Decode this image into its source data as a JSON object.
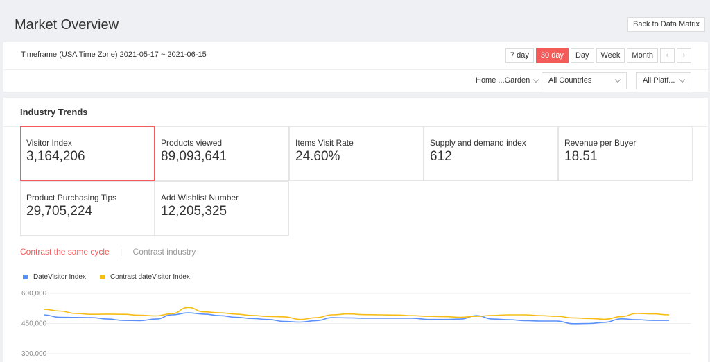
{
  "header": {
    "title": "Market Overview",
    "back_label": "Back to Data Matrix"
  },
  "filters": {
    "timeframe": "Timeframe (USA Time Zone) 2021-05-17 ~ 2021-06-15",
    "ranges": [
      "7 day",
      "30 day",
      "Day",
      "Week",
      "Month"
    ],
    "active_range": "30 day",
    "prev_glyph": "‹",
    "next_glyph": "›",
    "category": "Home ...Garden",
    "country": "All Countries",
    "platform": "All Platf..."
  },
  "trends": {
    "title": "Industry Trends",
    "metrics": [
      {
        "label": "Visitor Index",
        "value": "3,164,206"
      },
      {
        "label": "Products viewed",
        "value": "89,093,641"
      },
      {
        "label": "Items Visit Rate",
        "value": "24.60%"
      },
      {
        "label": "Supply and demand index",
        "value": "612"
      },
      {
        "label": "Revenue per Buyer",
        "value": "18.51"
      },
      {
        "label": "Product Purchasing Tips",
        "value": "29,705,224"
      },
      {
        "label": "Add Wishlist Number",
        "value": "12,205,325"
      }
    ],
    "selected_metric": "Visitor Index",
    "contrast_same_cycle": "Contrast the same cycle",
    "contrast_separator": "|",
    "contrast_industry": "Contrast industry"
  },
  "colors": {
    "accent": "#f45b5b",
    "series_blue": "#5b8ff9",
    "series_yellow": "#f6bd16"
  },
  "chart_data": {
    "type": "line",
    "ylim": [
      300000,
      600000
    ],
    "yticks": [
      "600,000",
      "450,000",
      "300,000"
    ],
    "ytick_values": [
      600000,
      450000,
      300000
    ],
    "series": [
      {
        "name": "DateVisitor Index",
        "color": "#5b8ff9",
        "values": [
          493000,
          481000,
          480000,
          479000,
          472000,
          465000,
          464000,
          472000,
          493000,
          503000,
          497000,
          489000,
          481000,
          475000,
          470000,
          460000,
          457000,
          464000,
          479000,
          478000,
          476000,
          476000,
          476000,
          476000,
          470000,
          470000,
          472000,
          489000,
          472000,
          469000,
          464000,
          462000,
          462000,
          449000,
          450000,
          456000,
          473000,
          469000,
          465000,
          465000
        ]
      },
      {
        "name": "Contrast dateVisitor Index",
        "color": "#f6bd16",
        "values": [
          521000,
          512000,
          500000,
          496000,
          497000,
          496000,
          491000,
          488000,
          499000,
          530000,
          508000,
          503000,
          497000,
          490000,
          485000,
          483000,
          470000,
          479000,
          493000,
          498000,
          494000,
          493000,
          492000,
          489000,
          486000,
          484000,
          481000,
          486000,
          490000,
          493000,
          493000,
          489000,
          486000,
          478000,
          475000,
          471000,
          484000,
          500000,
          498000,
          493000
        ]
      }
    ]
  }
}
